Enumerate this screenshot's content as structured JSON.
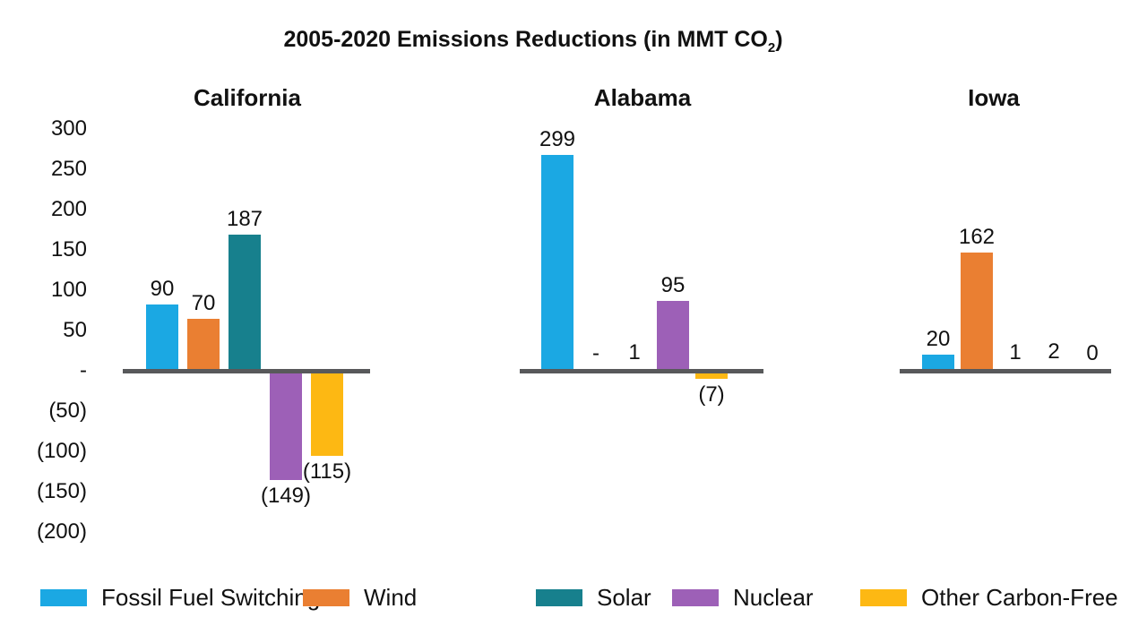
{
  "title": {
    "main": "2005-2020 Emissions Reductions (in MMT CO",
    "sub": "2",
    "close": ")"
  },
  "chart_data": {
    "type": "bar",
    "title": "2005-2020 Emissions Reductions (in MMT CO2)",
    "ylim": [
      -200,
      300
    ],
    "grid": false,
    "legend_position": "bottom",
    "axis_color": "#58595B",
    "y_ticks": [
      {
        "label": "300",
        "value": 300
      },
      {
        "label": "250",
        "value": 250
      },
      {
        "label": "200",
        "value": 200
      },
      {
        "label": "150",
        "value": 150
      },
      {
        "label": "100",
        "value": 100
      },
      {
        "label": "50",
        "value": 50
      },
      {
        "label": "-",
        "value": 0
      },
      {
        "label": "(50)",
        "value": -50
      },
      {
        "label": "(100)",
        "value": -100
      },
      {
        "label": "(150)",
        "value": -150
      },
      {
        "label": "(200)",
        "value": -200
      }
    ],
    "series": [
      {
        "name": "Fossil Fuel Switching",
        "color": "#1BA8E3"
      },
      {
        "name": "Wind",
        "color": "#EA7F32"
      },
      {
        "name": "Solar",
        "color": "#17808D"
      },
      {
        "name": "Nuclear",
        "color": "#9D60B7"
      },
      {
        "name": "Other Carbon-Free",
        "color": "#FDB813"
      }
    ],
    "groups": [
      {
        "name": "California",
        "values": [
          90,
          70,
          187,
          -149,
          -115
        ],
        "labels": [
          "90",
          "70",
          "187",
          "(149)",
          "(115)"
        ]
      },
      {
        "name": "Alabama",
        "values": [
          299,
          null,
          1,
          95,
          -7
        ],
        "labels": [
          "299",
          "-",
          "1",
          "95",
          "(7)"
        ]
      },
      {
        "name": "Iowa",
        "values": [
          20,
          162,
          1,
          2,
          0
        ],
        "labels": [
          "20",
          "162",
          "1",
          "2",
          "0"
        ]
      }
    ]
  }
}
